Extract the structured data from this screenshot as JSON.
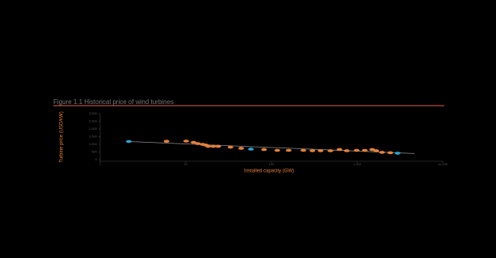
{
  "chart_data": {
    "type": "scatter",
    "title": "Figure 1.1 Historical price of wind turbines",
    "x_label": "Installed capacity (GW)",
    "y_label": "Turbine price (USD/kW)",
    "xscale": "log",
    "xlim": [
      1,
      10000
    ],
    "xticks": [
      1,
      10,
      100,
      {
        "value": 1000,
        "label": "1,000"
      },
      {
        "value": 10000,
        "label": "10,000"
      }
    ],
    "ylim": [
      0,
      3000
    ],
    "yticks": [
      0,
      500,
      {
        "value": 1000,
        "label": "1,000"
      },
      {
        "value": 1500,
        "label": "1,500"
      },
      {
        "value": 2000,
        "label": "2,000"
      },
      {
        "value": 2500,
        "label": "2,500"
      },
      {
        "value": 3000,
        "label": "3,000"
      }
    ],
    "series": [
      {
        "color": "#e8803a",
        "x": [
          5.96,
          10.1,
          12.3,
          13.8,
          15.7,
          17.1,
          18.3,
          20.9,
          23.9,
          33.2,
          44.3,
          82,
          117,
          159,
          236,
          301,
          375,
          489,
          623,
          759,
          989,
          1233,
          1503,
          1678,
          1959,
          2442
        ],
        "values": [
          1200,
          1210,
          1130,
          1050,
          1000,
          950,
          870,
          870,
          870,
          815,
          740,
          660,
          605,
          605,
          605,
          580,
          580,
          580,
          660,
          580,
          605,
          605,
          660,
          580,
          475,
          450
        ]
      },
      {
        "color": "#2aa6d8",
        "x": [
          2.16,
          57.6,
          2978
        ],
        "values": [
          1184,
          685,
          420
        ]
      }
    ],
    "trend": {
      "color": "#8a8a8a",
      "x": [
        2.16,
        4700
      ],
      "values": [
        1184,
        400
      ]
    },
    "rule_color": "#e06050"
  }
}
